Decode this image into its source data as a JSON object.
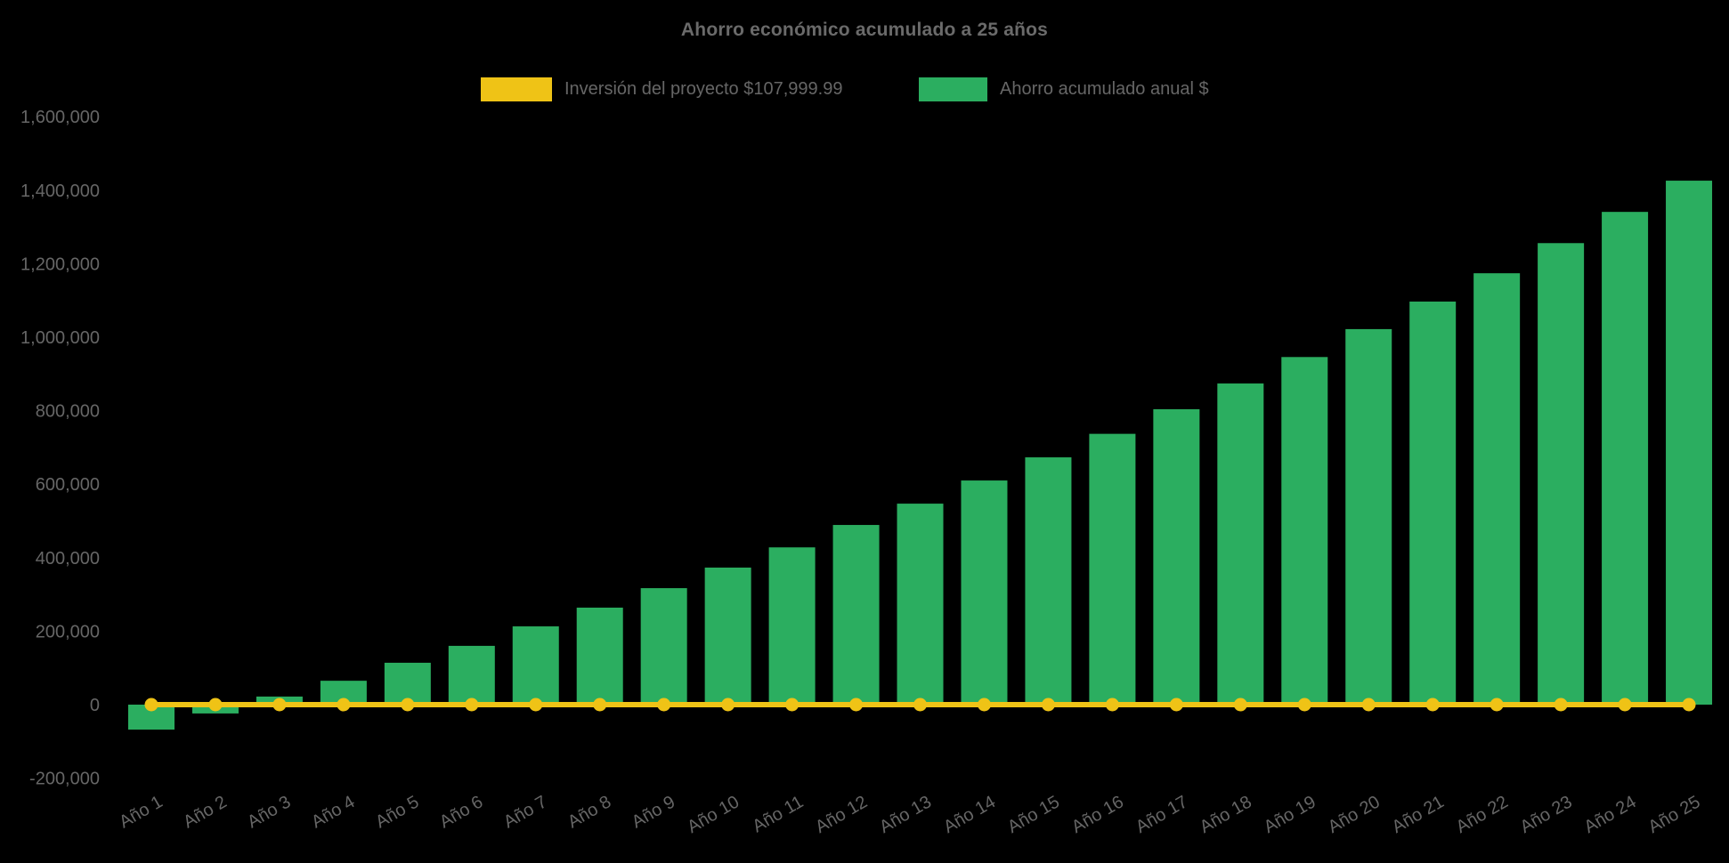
{
  "title": "Ahorro económico acumulado a 25 años",
  "legend": [
    {
      "label": "Inversión del proyecto $107,999.99",
      "color": "#EFC316",
      "type": "line"
    },
    {
      "label": "Ahorro acumulado anual $",
      "color": "#2BAE60",
      "type": "bar"
    }
  ],
  "colors": {
    "background": "#000000",
    "text": "#666666",
    "title_text": "#6A6A6A",
    "bar": "#2BAE60",
    "line": "#EFC316"
  },
  "chart_data": {
    "type": "bar",
    "title": "Ahorro económico acumulado a 25 años",
    "xlabel": "",
    "ylabel": "",
    "grid": false,
    "legend_position": "top",
    "x_label_rotation": -30,
    "ylim": [
      -200000,
      1600000
    ],
    "ytick_step": 200000,
    "ytick_labels": [
      "-200,000",
      "0",
      "200,000",
      "400,000",
      "600,000",
      "800,000",
      "1,000,000",
      "1,200,000",
      "1,400,000",
      "1,600,000"
    ],
    "categories": [
      "Año 1",
      "Año 2",
      "Año 3",
      "Año 4",
      "Año 5",
      "Año 6",
      "Año 7",
      "Año 8",
      "Año 9",
      "Año 10",
      "Año 11",
      "Año 12",
      "Año 13",
      "Año 14",
      "Año 15",
      "Año 16",
      "Año 17",
      "Año 18",
      "Año 19",
      "Año 20",
      "Año 21",
      "Año 22",
      "Año 23",
      "Año 24",
      "Año 25"
    ],
    "series": [
      {
        "name": "Ahorro acumulado anual $",
        "type": "bar",
        "color": "#2BAE60",
        "values": [
          -68000,
          -24000,
          22000,
          65000,
          114000,
          160000,
          213000,
          264000,
          317000,
          373000,
          428000,
          489000,
          547000,
          610000,
          673000,
          737000,
          804000,
          874000,
          946000,
          1022000,
          1097000,
          1174000,
          1256000,
          1341000,
          1426000
        ]
      },
      {
        "name": "Inversión del proyecto $107,999.99",
        "type": "line",
        "color": "#EFC316",
        "marker": "circle",
        "values": [
          0,
          0,
          0,
          0,
          0,
          0,
          0,
          0,
          0,
          0,
          0,
          0,
          0,
          0,
          0,
          0,
          0,
          0,
          0,
          0,
          0,
          0,
          0,
          0,
          0
        ]
      }
    ]
  }
}
